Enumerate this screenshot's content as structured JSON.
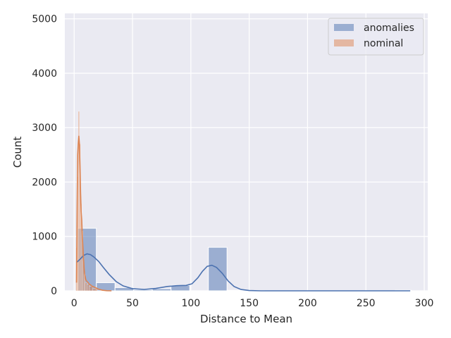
{
  "chart_data": {
    "type": "histogram",
    "xlabel": "Distance to Mean",
    "ylabel": "Count",
    "xlim": [
      -8,
      303
    ],
    "ylim": [
      0,
      5100
    ],
    "xticks": [
      0,
      50,
      100,
      150,
      200,
      250,
      300
    ],
    "yticks": [
      0,
      1000,
      2000,
      3000,
      4000,
      5000
    ],
    "grid": true,
    "legend_position": "top-right",
    "series": [
      {
        "name": "anomalies",
        "color": "#4c72b0",
        "bins": [
          {
            "x0": 3,
            "x1": 19,
            "count": 1150
          },
          {
            "x0": 19,
            "x1": 35,
            "count": 150
          },
          {
            "x0": 35,
            "x1": 51,
            "count": 60
          },
          {
            "x0": 51,
            "x1": 67,
            "count": 20
          },
          {
            "x0": 67,
            "x1": 83,
            "count": 40
          },
          {
            "x0": 83,
            "x1": 99,
            "count": 100
          },
          {
            "x0": 115,
            "x1": 131,
            "count": 800
          },
          {
            "x0": 131,
            "x1": 147,
            "count": 10
          },
          {
            "x0": 147,
            "x1": 163,
            "count": 5
          },
          {
            "x0": 275,
            "x1": 289,
            "count": 10
          }
        ],
        "kde": [
          [
            2,
            520
          ],
          [
            5,
            580
          ],
          [
            8,
            650
          ],
          [
            11,
            680
          ],
          [
            14,
            665
          ],
          [
            17,
            620
          ],
          [
            21,
            540
          ],
          [
            25,
            430
          ],
          [
            30,
            300
          ],
          [
            36,
            170
          ],
          [
            42,
            90
          ],
          [
            50,
            40
          ],
          [
            60,
            25
          ],
          [
            70,
            45
          ],
          [
            80,
            80
          ],
          [
            88,
            95
          ],
          [
            96,
            100
          ],
          [
            101,
            130
          ],
          [
            106,
            240
          ],
          [
            110,
            360
          ],
          [
            114,
            450
          ],
          [
            118,
            470
          ],
          [
            122,
            430
          ],
          [
            127,
            320
          ],
          [
            132,
            180
          ],
          [
            137,
            80
          ],
          [
            143,
            25
          ],
          [
            150,
            6
          ],
          [
            160,
            0
          ],
          [
            200,
            0
          ],
          [
            250,
            0
          ],
          [
            288,
            0
          ]
        ]
      },
      {
        "name": "nominal",
        "color": "#dd8452",
        "bins": [
          {
            "x0": 1.5,
            "x1": 2.5,
            "count": 800
          },
          {
            "x0": 2.5,
            "x1": 3.5,
            "count": 2100
          },
          {
            "x0": 3.5,
            "x1": 4.5,
            "count": 3300
          },
          {
            "x0": 4.5,
            "x1": 5.5,
            "count": 2700
          },
          {
            "x0": 5.5,
            "x1": 6.5,
            "count": 1600
          },
          {
            "x0": 6.5,
            "x1": 7.5,
            "count": 1100
          },
          {
            "x0": 7.5,
            "x1": 8.5,
            "count": 600
          },
          {
            "x0": 8.5,
            "x1": 9.5,
            "count": 300
          },
          {
            "x0": 9.5,
            "x1": 11,
            "count": 150
          },
          {
            "x0": 11,
            "x1": 13,
            "count": 120
          },
          {
            "x0": 13,
            "x1": 16,
            "count": 80
          },
          {
            "x0": 16,
            "x1": 20,
            "count": 40
          }
        ],
        "kde": [
          [
            2,
            150
          ],
          [
            2.5,
            1500
          ],
          [
            3,
            2500
          ],
          [
            3.5,
            2700
          ],
          [
            4,
            2850
          ],
          [
            4.5,
            2700
          ],
          [
            5,
            2300
          ],
          [
            5.5,
            1800
          ],
          [
            6,
            1450
          ],
          [
            6.5,
            1300
          ],
          [
            7,
            1000
          ],
          [
            7.5,
            800
          ],
          [
            8,
            600
          ],
          [
            8.5,
            420
          ],
          [
            9,
            300
          ],
          [
            10,
            200
          ],
          [
            11,
            170
          ],
          [
            12,
            150
          ],
          [
            13,
            120
          ],
          [
            14,
            110
          ],
          [
            15,
            90
          ],
          [
            17,
            70
          ],
          [
            19,
            50
          ],
          [
            21,
            30
          ],
          [
            24,
            12
          ],
          [
            28,
            3
          ],
          [
            32,
            0
          ]
        ]
      }
    ]
  }
}
